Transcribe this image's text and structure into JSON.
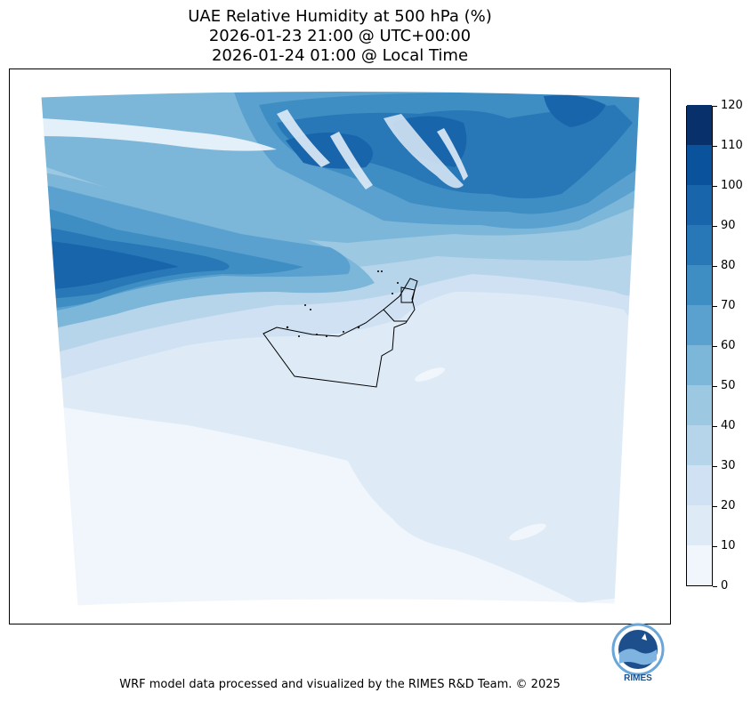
{
  "title": {
    "line1": "UAE Relative Humidity at 500 hPa (%)",
    "line2": "2026-01-23 21:00 @ UTC+00:00",
    "line3": "2026-01-24 01:00 @ Local Time"
  },
  "colorbar": {
    "ticks": [
      "0",
      "10",
      "20",
      "30",
      "40",
      "50",
      "60",
      "70",
      "80",
      "90",
      "100",
      "110",
      "120"
    ],
    "colors": [
      "#f0f6fc",
      "#deebf7",
      "#cfe1f2",
      "#b7d5ea",
      "#9dc8e1",
      "#7cb7da",
      "#5aa1cf",
      "#3e8ec4",
      "#2878b8",
      "#1865ab",
      "#0a529b",
      "#08306b"
    ]
  },
  "logo": {
    "text": "RIMES",
    "ring_text": "Regional Integrated Multi-Hazard Early Warning System"
  },
  "footer": {
    "credit": "WRF model data processed and visualized by the RIMES R&D Team. © 2025"
  }
}
